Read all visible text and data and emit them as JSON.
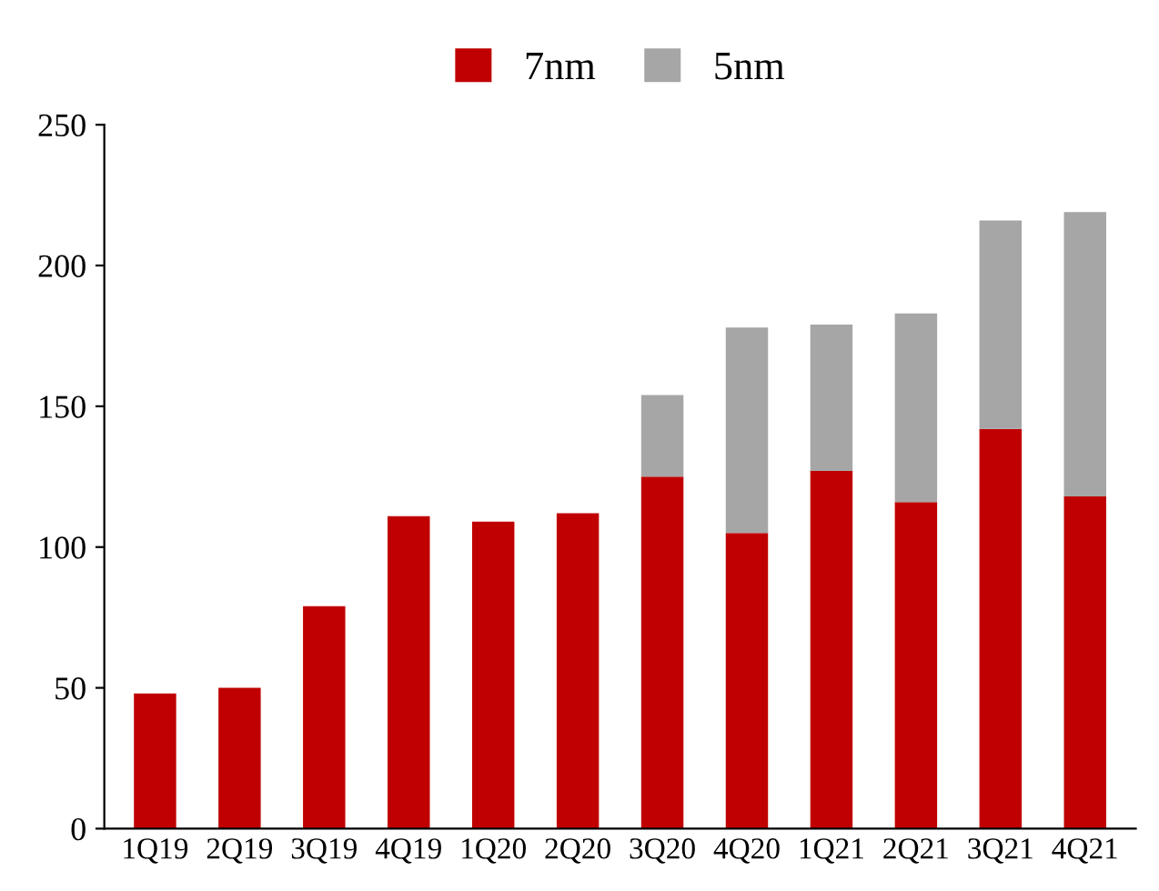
{
  "chart_data": {
    "type": "bar",
    "stacked": true,
    "categories": [
      "1Q19",
      "2Q19",
      "3Q19",
      "4Q19",
      "1Q20",
      "2Q20",
      "3Q20",
      "4Q20",
      "1Q21",
      "2Q21",
      "3Q21",
      "4Q21"
    ],
    "series": [
      {
        "name": "7nm",
        "color": "#c00000",
        "values": [
          48,
          50,
          79,
          111,
          109,
          112,
          125,
          105,
          127,
          116,
          142,
          118
        ]
      },
      {
        "name": "5nm",
        "color": "#a6a6a6",
        "values": [
          null,
          null,
          null,
          null,
          null,
          null,
          29,
          73,
          52,
          67,
          74,
          101
        ]
      }
    ],
    "ylim": [
      0,
      250
    ],
    "yticks": [
      0,
      50,
      100,
      150,
      200,
      250
    ],
    "grid": false,
    "legend": "top"
  }
}
